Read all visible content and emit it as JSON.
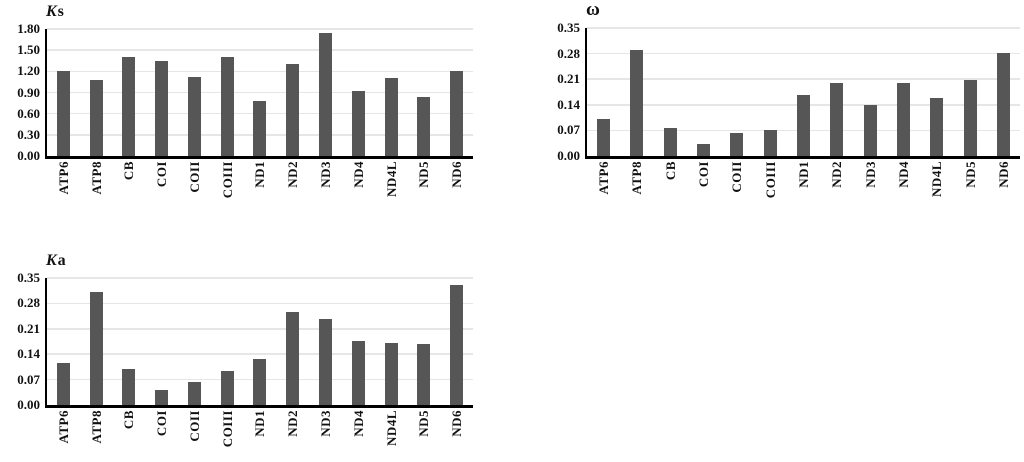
{
  "figure": {
    "bar_color": "#565656",
    "gridline_color": "#e6e6e6",
    "axis_color": "#000000",
    "text_color": "#111111"
  },
  "chart_data": [
    {
      "id": "ks",
      "type": "bar",
      "title": "Ks",
      "title_format": "italic-first",
      "ylabel": "",
      "xlabel": "",
      "ylim": [
        0,
        1.8
      ],
      "ytick_labels": [
        "1.80",
        "1.50",
        "1.20",
        "0.90",
        "0.60",
        "0.30",
        "0.00"
      ],
      "grid": true,
      "legend_position": "none",
      "categories": [
        "ATP6",
        "ATP8",
        "CB",
        "COI",
        "COII",
        "COIII",
        "ND1",
        "ND2",
        "ND3",
        "ND4",
        "ND4L",
        "ND5",
        "ND6"
      ],
      "values": [
        1.2,
        1.08,
        1.4,
        1.34,
        1.12,
        1.41,
        0.78,
        1.31,
        1.74,
        0.92,
        1.1,
        0.83,
        1.21
      ]
    },
    {
      "id": "omega",
      "type": "bar",
      "title": "ω",
      "title_format": "plain",
      "ylabel": "",
      "xlabel": "",
      "ylim": [
        0,
        0.35
      ],
      "ytick_labels": [
        "0.35",
        "0.28",
        "0.21",
        "0.14",
        "0.07",
        "0.00"
      ],
      "grid": true,
      "legend_position": "none",
      "categories": [
        "ATP6",
        "ATP8",
        "CB",
        "COI",
        "COII",
        "COIII",
        "ND1",
        "ND2",
        "ND3",
        "ND4",
        "ND4L",
        "ND5",
        "ND6"
      ],
      "values": [
        0.1,
        0.29,
        0.077,
        0.032,
        0.062,
        0.071,
        0.167,
        0.2,
        0.139,
        0.2,
        0.158,
        0.209,
        0.283
      ]
    },
    {
      "id": "ka",
      "type": "bar",
      "title": "Ka",
      "title_format": "italic-first",
      "ylabel": "",
      "xlabel": "",
      "ylim": [
        0,
        0.35
      ],
      "ytick_labels": [
        "0.35",
        "0.28",
        "0.21",
        "0.14",
        "0.07",
        "0.00"
      ],
      "grid": true,
      "legend_position": "none",
      "categories": [
        "ATP6",
        "ATP8",
        "CB",
        "COI",
        "COII",
        "COIII",
        "ND1",
        "ND2",
        "ND3",
        "ND4",
        "ND4L",
        "ND5",
        "ND6"
      ],
      "values": [
        0.115,
        0.311,
        0.1,
        0.042,
        0.063,
        0.094,
        0.127,
        0.255,
        0.238,
        0.177,
        0.17,
        0.168,
        0.332
      ]
    }
  ]
}
